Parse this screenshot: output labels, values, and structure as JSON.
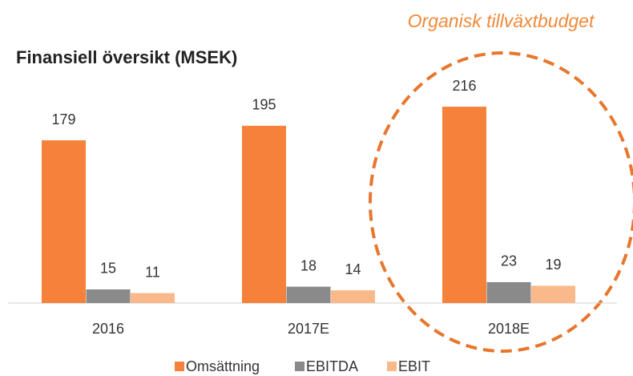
{
  "chart_data": {
    "type": "bar",
    "title": "Finansiell översikt (MSEK)",
    "annotation": "Organisk tillväxtbudget",
    "categories": [
      "2016",
      "2017E",
      "2018E"
    ],
    "series": [
      {
        "name": "Omsättning",
        "color": "#f5813a",
        "values": [
          179,
          195,
          216
        ]
      },
      {
        "name": "EBITDA",
        "color": "#8a8a8a",
        "values": [
          15,
          18,
          23
        ]
      },
      {
        "name": "EBIT",
        "color": "#f9b98a",
        "values": [
          11,
          14,
          19
        ]
      }
    ],
    "legend": "bottom"
  }
}
